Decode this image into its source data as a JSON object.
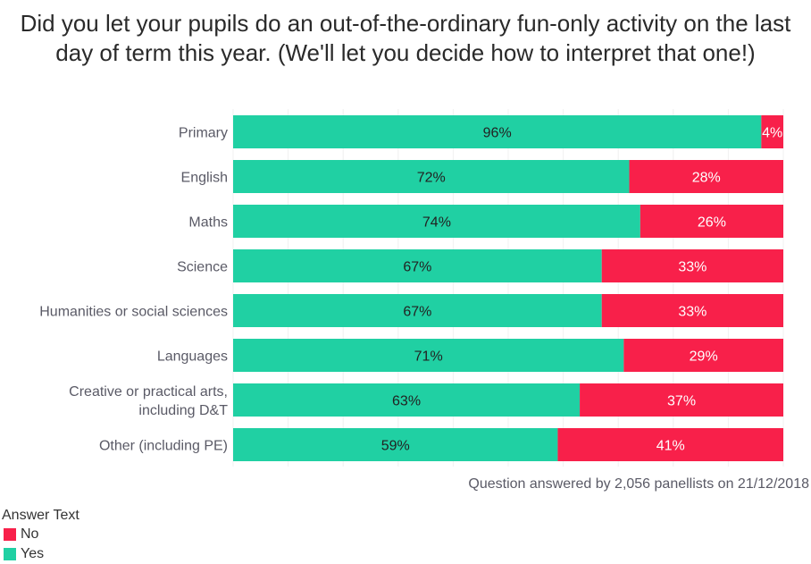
{
  "chart_data": {
    "type": "bar",
    "orientation": "horizontal",
    "stacked": true,
    "percent": true,
    "title": "Did you let your pupils do an out-of-the-ordinary fun-only activity on the last day of term this year. (We'll let you decide how to interpret that one!)",
    "categories": [
      "Primary",
      "English",
      "Maths",
      "Science",
      "Humanities or social sciences",
      "Languages",
      "Creative or practical arts, including D&T",
      "Other (including PE)"
    ],
    "category_lines": [
      [
        "Primary"
      ],
      [
        "English"
      ],
      [
        "Maths"
      ],
      [
        "Science"
      ],
      [
        "Humanities or social sciences"
      ],
      [
        "Languages"
      ],
      [
        "Creative or practical arts,",
        "including D&T"
      ],
      [
        "Other (including PE)"
      ]
    ],
    "series": [
      {
        "name": "Yes",
        "color": "#20d0a3",
        "values": [
          96,
          72,
          74,
          67,
          67,
          71,
          63,
          59
        ],
        "labels": [
          "96%",
          "72%",
          "74%",
          "67%",
          "67%",
          "71%",
          "63%",
          "59%"
        ]
      },
      {
        "name": "No",
        "color": "#f8204a",
        "values": [
          4,
          28,
          26,
          33,
          33,
          29,
          37,
          41
        ],
        "labels": [
          "4%",
          "28%",
          "26%",
          "33%",
          "33%",
          "29%",
          "37%",
          "41%"
        ]
      }
    ],
    "xlim": [
      0,
      100
    ],
    "grid": true,
    "legend": {
      "title": "Answer Text",
      "position": "bottom-left",
      "entries": [
        "No",
        "Yes"
      ]
    },
    "caption": "Question answered by 2,056 panellists on 21/12/2018"
  }
}
